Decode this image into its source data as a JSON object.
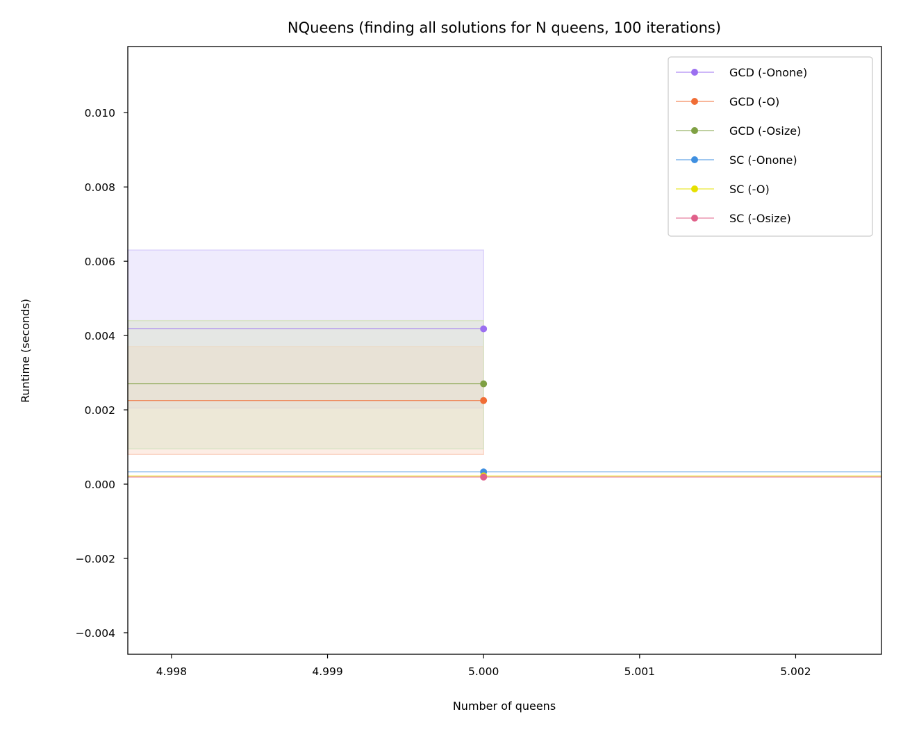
{
  "chart_data": {
    "type": "line",
    "title": "NQueens (finding all solutions for N queens, 100 iterations)",
    "xlabel": "Number of queens",
    "ylabel": "Runtime (seconds)",
    "xlim": [
      4.99772,
      5.00255
    ],
    "ylim": [
      -0.00458,
      0.01178
    ],
    "x_ticks": [
      4.998,
      4.999,
      5.0,
      5.001,
      5.002
    ],
    "x_tick_labels": [
      "4.998",
      "4.999",
      "5.000",
      "5.001",
      "5.002"
    ],
    "y_ticks": [
      -0.004,
      -0.002,
      0.0,
      0.002,
      0.004,
      0.006,
      0.008,
      0.01
    ],
    "y_tick_labels": [
      "−0.004",
      "−0.002",
      "0.000",
      "0.002",
      "0.004",
      "0.006",
      "0.008",
      "0.010"
    ],
    "grid": false,
    "legend_position": "top-right",
    "series": [
      {
        "name": "GCD (-Onone)",
        "color": "#9b6ff0",
        "fill": "#dcd3fb",
        "x": [
          5.0
        ],
        "y": [
          0.00418
        ],
        "lower": [
          0.00205
        ],
        "upper": [
          0.0063
        ]
      },
      {
        "name": "GCD (-O)",
        "color": "#f06d35",
        "fill": "#fad6c6",
        "x": [
          5.0
        ],
        "y": [
          0.00225
        ],
        "lower": [
          0.0008
        ],
        "upper": [
          0.0037
        ]
      },
      {
        "name": "GCD (-Osize)",
        "color": "#7fa043",
        "fill": "#d9e3c6",
        "x": [
          5.0
        ],
        "y": [
          0.0027
        ],
        "lower": [
          0.00095
        ],
        "upper": [
          0.0044
        ]
      },
      {
        "name": "SC (-Onone)",
        "color": "#3f8fe0",
        "fill": "#c4dcf5",
        "x": [
          5.0
        ],
        "y": [
          0.00033
        ],
        "lower": [
          0.00033
        ],
        "upper": [
          0.00033
        ]
      },
      {
        "name": "SC (-O)",
        "color": "#e6e000",
        "fill": "#f7f5b3",
        "x": [
          5.0
        ],
        "y": [
          0.00022
        ],
        "lower": [
          0.00022
        ],
        "upper": [
          0.00022
        ]
      },
      {
        "name": "SC (-Osize)",
        "color": "#e0608a",
        "fill": "#f6cbd9",
        "x": [
          5.0
        ],
        "y": [
          0.00019
        ],
        "lower": [
          0.00019
        ],
        "upper": [
          0.00019
        ]
      }
    ]
  }
}
